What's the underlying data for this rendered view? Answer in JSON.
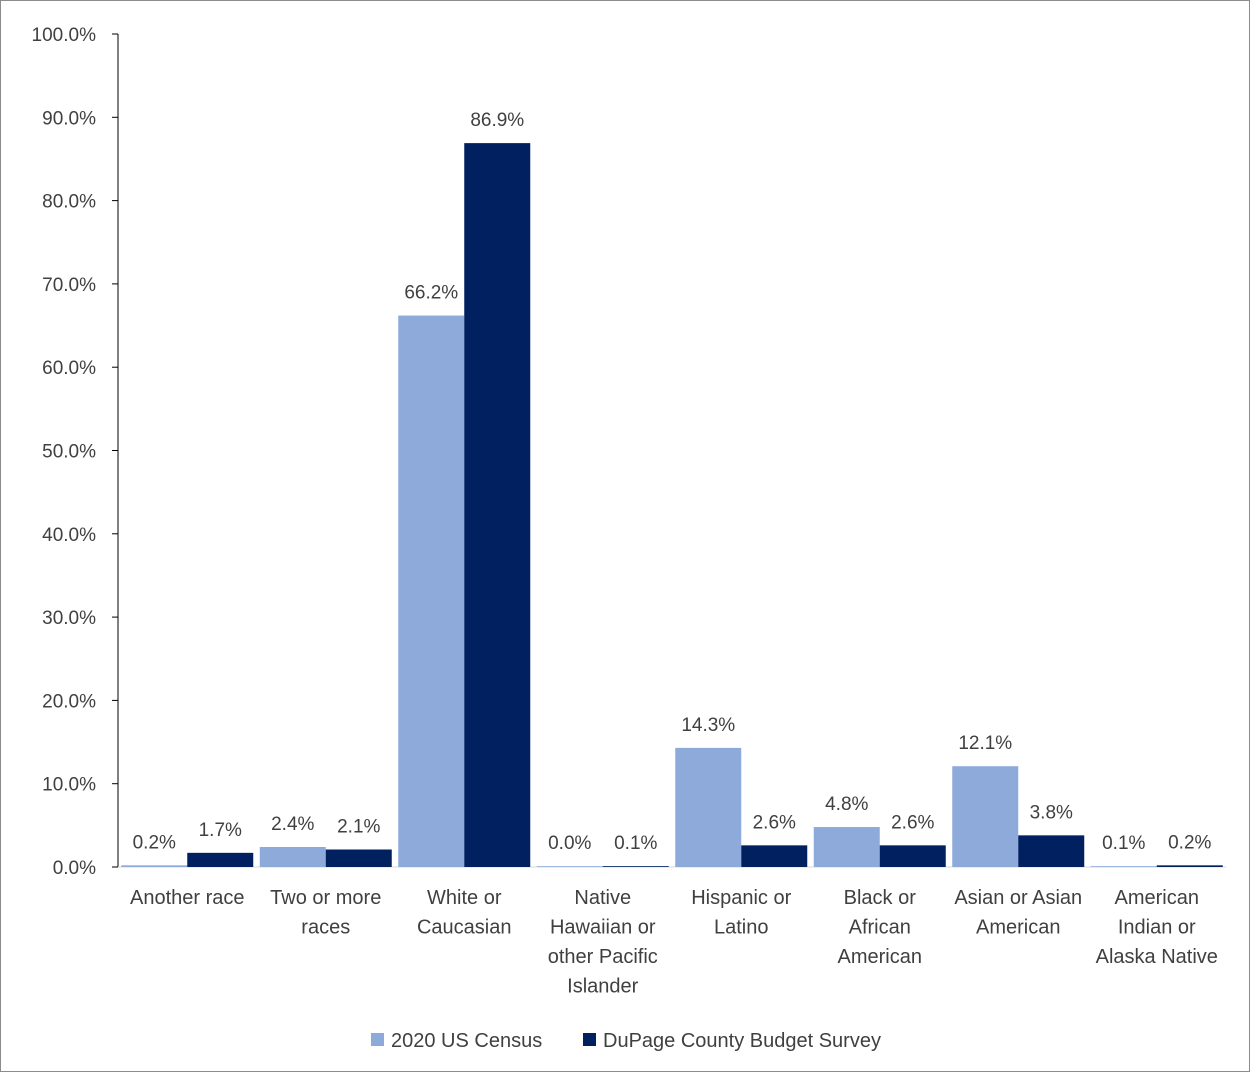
{
  "chart_data": {
    "type": "bar",
    "title": "",
    "xlabel": "",
    "ylabel": "",
    "ylim": [
      0,
      100
    ],
    "y_ticks": [
      "0.0%",
      "10.0%",
      "20.0%",
      "30.0%",
      "40.0%",
      "50.0%",
      "60.0%",
      "70.0%",
      "80.0%",
      "90.0%",
      "100.0%"
    ],
    "grid": false,
    "legend_position": "bottom",
    "categories": [
      [
        "Another race"
      ],
      [
        "Two or more",
        "races"
      ],
      [
        "White or",
        "Caucasian"
      ],
      [
        "Native",
        "Hawaiian or",
        "other Pacific",
        "Islander"
      ],
      [
        "Hispanic or",
        "Latino"
      ],
      [
        "Black or",
        "African",
        "American"
      ],
      [
        "Asian or Asian",
        "American"
      ],
      [
        "American",
        "Indian or",
        "Alaska Native"
      ]
    ],
    "series": [
      {
        "name": "2020 US Census",
        "color": "#8eaadb",
        "values": [
          0.2,
          2.4,
          66.2,
          0.0,
          14.3,
          4.8,
          12.1,
          0.1
        ],
        "labels": [
          "0.2%",
          "2.4%",
          "66.2%",
          "0.0%",
          "14.3%",
          "4.8%",
          "12.1%",
          "0.1%"
        ]
      },
      {
        "name": "DuPage County Budget Survey",
        "color": "#002060",
        "values": [
          1.7,
          2.1,
          86.9,
          0.1,
          2.6,
          2.6,
          3.8,
          0.2
        ],
        "labels": [
          "1.7%",
          "2.1%",
          "86.9%",
          "0.1%",
          "2.6%",
          "2.6%",
          "3.8%",
          "0.2%"
        ]
      }
    ]
  }
}
